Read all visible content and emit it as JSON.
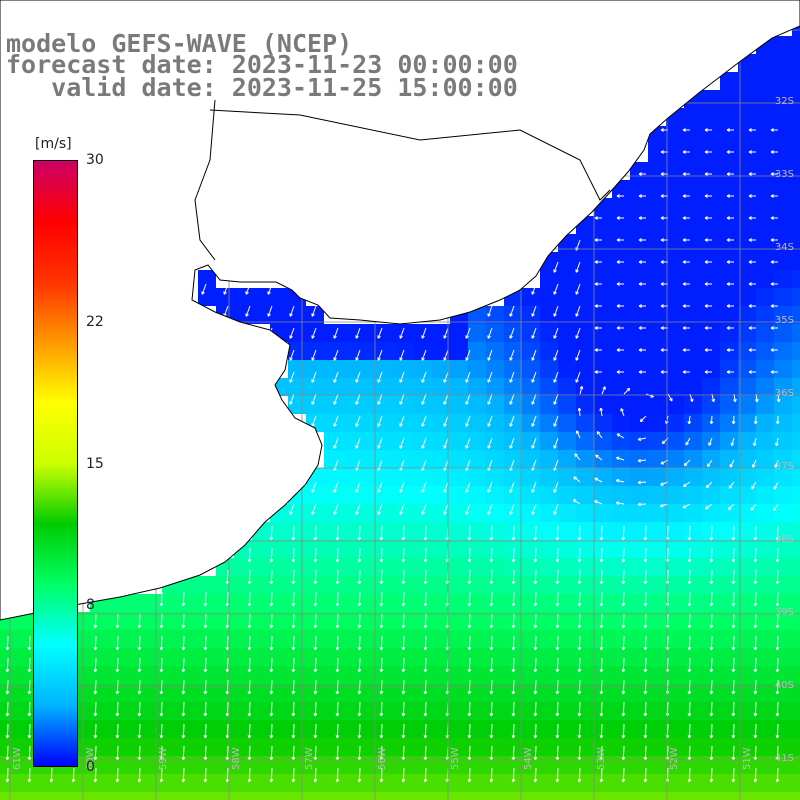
{
  "title": {
    "line1": "modelo GEFS-WAVE (NCEP)",
    "line2": "forecast date: 2023-11-23 00:00:00",
    "line3": "   valid date: 2023-11-25 15:00:00"
  },
  "colorbar": {
    "unit_label": "[m/s]",
    "ticks": [
      {
        "value": 30,
        "label": "30"
      },
      {
        "value": 22,
        "label": "22"
      },
      {
        "value": 15,
        "label": "15"
      },
      {
        "value": 8,
        "label": "8"
      },
      {
        "value": 0,
        "label": "0"
      }
    ],
    "colors": [
      "#0000ff",
      "#00b4ff",
      "#00ffff",
      "#00ff66",
      "#00cc00",
      "#ccff00",
      "#ffff00",
      "#ff9900",
      "#ff3300",
      "#ff0000",
      "#cc0066"
    ]
  },
  "lat_labels": [
    "32S",
    "33S",
    "34S",
    "35S",
    "36S",
    "37S",
    "38S",
    "39S",
    "40S",
    "41S"
  ],
  "lon_labels": [
    "61W",
    "60W",
    "59W",
    "58W",
    "57W",
    "56W",
    "55W",
    "54W",
    "53W",
    "52W",
    "51W"
  ],
  "colors": {
    "land": "#ffffff",
    "grid": "#888888",
    "coast": "#000000",
    "arrow": "#ffffff",
    "title": "#7a7a7a"
  }
}
